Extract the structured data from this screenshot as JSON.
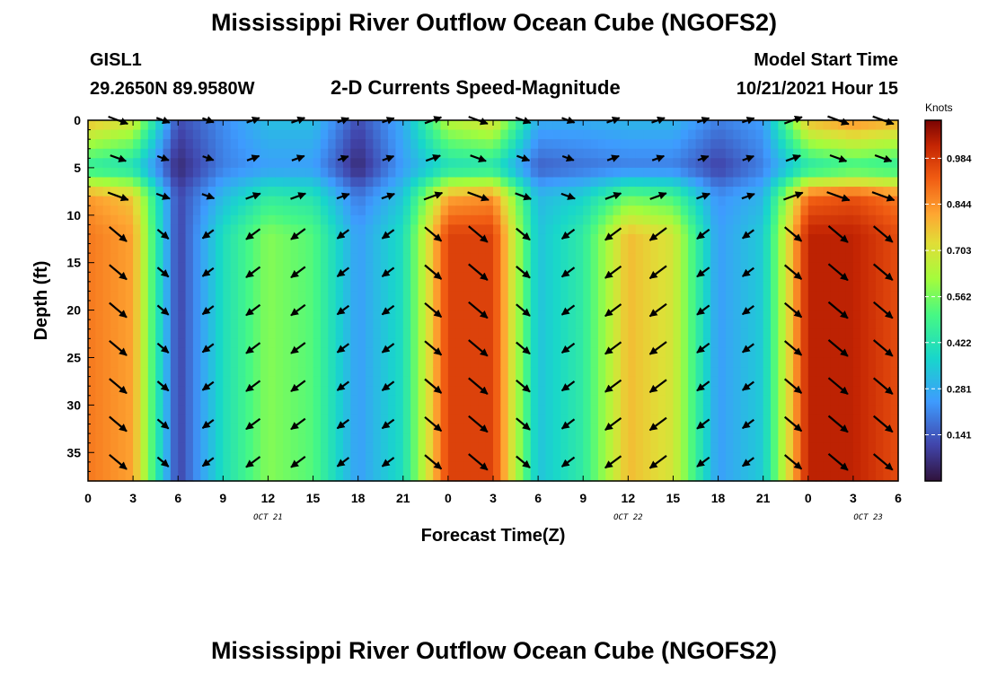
{
  "title": "Mississippi River Outflow Ocean Cube (NGOFS2)",
  "title_repeat": "Mississippi River Outflow Ocean Cube (NGOFS2)",
  "station": {
    "id": "GISL1",
    "coords": "29.2650N  89.9580W"
  },
  "model_start": {
    "label": "Model Start Time",
    "value": "10/21/2021 Hour 15"
  },
  "chart_data": {
    "type": "heatmap",
    "title": "2-D Currents Speed-Magnitude",
    "xlabel": "Forecast Time(Z)",
    "ylabel": "Depth (ft)",
    "x_ticks": [
      "0",
      "3",
      "6",
      "9",
      "12",
      "15",
      "18",
      "21",
      "0",
      "3",
      "6",
      "9",
      "12",
      "15",
      "18",
      "21",
      "0",
      "3",
      "6"
    ],
    "x_range_hours": [
      0,
      54
    ],
    "date_labels": [
      {
        "text": "OCT 21",
        "hour": 12
      },
      {
        "text": "OCT 22",
        "hour": 36
      },
      {
        "text": "OCT 23",
        "hour": 52
      }
    ],
    "y_ticks": [
      0,
      5,
      10,
      15,
      20,
      25,
      30,
      35
    ],
    "ylim": [
      0,
      38
    ],
    "y_inverted": true,
    "colorbar": {
      "unit": "Knots",
      "ticks": [
        "0.984",
        "0.844",
        "0.703",
        "0.562",
        "0.422",
        "0.281",
        "0.141"
      ],
      "range": [
        0,
        1.1
      ]
    },
    "time_hours": [
      0,
      3,
      6,
      9,
      12,
      15,
      18,
      21,
      24,
      27,
      30,
      33,
      36,
      39,
      42,
      45,
      48,
      51,
      54
    ],
    "deep_speed": [
      0.88,
      0.82,
      0.1,
      0.4,
      0.58,
      0.52,
      0.25,
      0.4,
      0.97,
      0.97,
      0.33,
      0.45,
      0.78,
      0.7,
      0.25,
      0.35,
      1.03,
      1.03,
      0.95
    ],
    "surface_speed": [
      0.78,
      0.7,
      0.12,
      0.22,
      0.32,
      0.32,
      0.12,
      0.28,
      0.65,
      0.72,
      0.28,
      0.28,
      0.3,
      0.3,
      0.2,
      0.25,
      0.78,
      0.85,
      0.8
    ],
    "mid_speed": [
      0.45,
      0.4,
      0.05,
      0.2,
      0.25,
      0.25,
      0.05,
      0.25,
      0.4,
      0.42,
      0.15,
      0.18,
      0.2,
      0.2,
      0.1,
      0.2,
      0.42,
      0.48,
      0.45
    ],
    "layer_depths_ft": {
      "surface": 0,
      "mid": 5,
      "interface": 8,
      "deep_top": 10
    },
    "vector_rows_depth_ft": [
      0,
      4,
      8,
      12,
      16,
      20,
      24,
      28,
      32,
      36
    ],
    "vector_cols_hour": [
      2,
      5,
      8,
      11,
      14,
      17,
      20,
      23,
      26,
      29,
      32,
      35,
      38,
      41,
      44,
      47,
      50,
      53
    ]
  }
}
